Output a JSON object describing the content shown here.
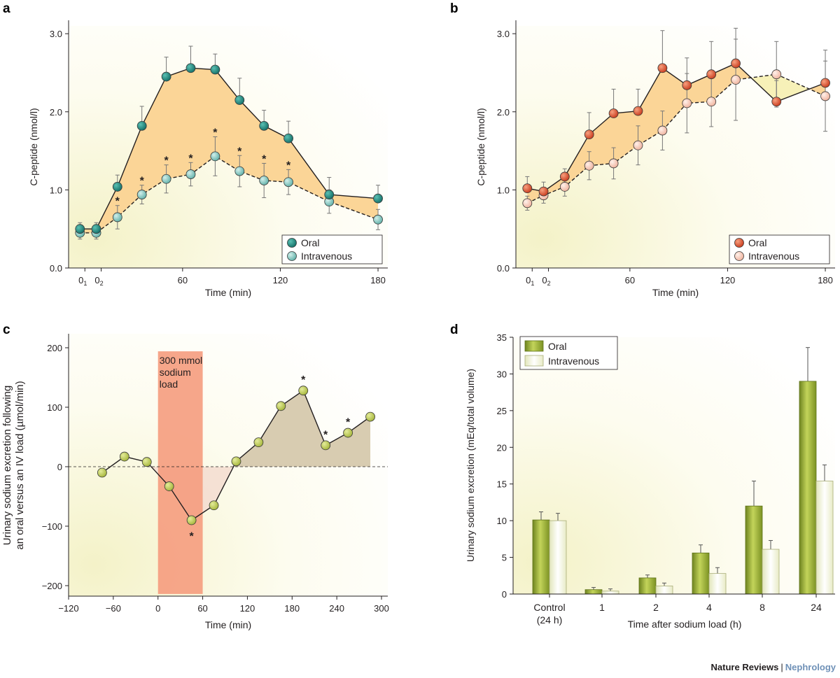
{
  "credit": {
    "publisher": "Nature Reviews",
    "separator": "|",
    "journal": "Nephrology"
  },
  "colors": {
    "oral_teal": "#1f8b80",
    "iv_teal": "#7fc7c0",
    "oral_red": "#e2542f",
    "iv_pink": "#f6c9b8",
    "fill_orange": "#fbd597",
    "fill_yellow": "#f7f1b8",
    "marker_green": "#c1cf55",
    "shade_brown": "#d8ccb1",
    "shade_pink": "#f3dcd0",
    "load_bar": "#f59c7e",
    "bar_oral": "#8fa52e",
    "bar_iv": "#f4f6df"
  },
  "chart_data": [
    {
      "panel": "a",
      "type": "line",
      "xlabel": "Time (min)",
      "ylabel": "C-peptide (nmol/l)",
      "xlim": [
        -10,
        186
      ],
      "ylim": [
        0,
        3.1
      ],
      "xticks": [
        {
          "v": 0,
          "t": "0",
          "sub": "1"
        },
        {
          "v": 10,
          "t": "0",
          "sub": "2"
        },
        {
          "v": 60,
          "t": "60"
        },
        {
          "v": 120,
          "t": "120"
        },
        {
          "v": 180,
          "t": "180"
        }
      ],
      "yticks": [
        {
          "v": 0,
          "t": "0.0"
        },
        {
          "v": 1,
          "t": "1.0"
        },
        {
          "v": 2,
          "t": "2.0"
        },
        {
          "v": 3,
          "t": "3.0"
        }
      ],
      "series": [
        {
          "name": "Oral",
          "style": "solid",
          "color": "#1f8b80",
          "x": [
            -3,
            7,
            20,
            35,
            50,
            65,
            80,
            95,
            110,
            125,
            150,
            180
          ],
          "y": [
            0.5,
            0.5,
            1.04,
            1.82,
            2.45,
            2.56,
            2.54,
            2.15,
            1.82,
            1.66,
            0.94,
            0.89
          ],
          "err": [
            0.08,
            0.08,
            0.15,
            0.25,
            0.25,
            0.28,
            0.2,
            0.28,
            0.2,
            0.22,
            0.22,
            0.17
          ]
        },
        {
          "name": "Intravenous",
          "style": "dashed",
          "color": "#7fc7c0",
          "x": [
            -3,
            7,
            20,
            35,
            50,
            65,
            80,
            95,
            110,
            125,
            150,
            180
          ],
          "y": [
            0.45,
            0.45,
            0.65,
            0.94,
            1.14,
            1.2,
            1.43,
            1.24,
            1.12,
            1.1,
            0.85,
            0.62
          ],
          "err": [
            0.08,
            0.08,
            0.15,
            0.12,
            0.18,
            0.15,
            0.25,
            0.2,
            0.22,
            0.16,
            0.15,
            0.13
          ]
        }
      ],
      "star_x": [
        20,
        35,
        50,
        65,
        80,
        95,
        110,
        125
      ],
      "star": "*",
      "legend": "bottom-right"
    },
    {
      "panel": "b",
      "type": "line",
      "xlabel": "Time (min)",
      "ylabel": "C-peptide (nmol/l)",
      "xlim": [
        -10,
        186
      ],
      "ylim": [
        0,
        3.1
      ],
      "xticks": [
        {
          "v": 0,
          "t": "0",
          "sub": "1"
        },
        {
          "v": 10,
          "t": "0",
          "sub": "2"
        },
        {
          "v": 60,
          "t": "60"
        },
        {
          "v": 120,
          "t": "120"
        },
        {
          "v": 180,
          "t": "180"
        }
      ],
      "yticks": [
        {
          "v": 0,
          "t": "0.0"
        },
        {
          "v": 1,
          "t": "1.0"
        },
        {
          "v": 2,
          "t": "2.0"
        },
        {
          "v": 3,
          "t": "3.0"
        }
      ],
      "series": [
        {
          "name": "Oral",
          "style": "solid",
          "color": "#e2542f",
          "x": [
            -3,
            7,
            20,
            35,
            50,
            65,
            80,
            95,
            110,
            125,
            150,
            180
          ],
          "y": [
            1.02,
            0.98,
            1.17,
            1.71,
            1.98,
            2.01,
            2.56,
            2.34,
            2.48,
            2.62,
            2.13,
            2.37
          ],
          "err": [
            0.15,
            0.12,
            0.1,
            0.28,
            0.31,
            0.28,
            0.48,
            0.35,
            0.42,
            0.45,
            0.27,
            0.42
          ]
        },
        {
          "name": "Intravenous",
          "style": "dashed",
          "color": "#f6c9b8",
          "x": [
            -3,
            7,
            20,
            35,
            50,
            65,
            80,
            95,
            110,
            125,
            150,
            180
          ],
          "y": [
            0.83,
            0.93,
            1.04,
            1.31,
            1.34,
            1.57,
            1.76,
            2.11,
            2.13,
            2.41,
            2.48,
            2.2
          ],
          "err": [
            0.09,
            0.1,
            0.12,
            0.18,
            0.2,
            0.25,
            0.25,
            0.38,
            0.32,
            0.52,
            0.42,
            0.45
          ]
        }
      ],
      "legend": "bottom-right"
    },
    {
      "panel": "c",
      "type": "line",
      "xlabel": "Time (min)",
      "ylabel": [
        "Urinary sodium excretion following",
        "an oral versus an IV load (µmol/min)"
      ],
      "xlim": [
        -120,
        310
      ],
      "ylim": [
        -210,
        210
      ],
      "xticks": [
        {
          "v": -120,
          "t": "−120"
        },
        {
          "v": -60,
          "t": "−60"
        },
        {
          "v": 0,
          "t": "0"
        },
        {
          "v": 60,
          "t": "60"
        },
        {
          "v": 120,
          "t": "120"
        },
        {
          "v": 180,
          "t": "180"
        },
        {
          "v": 240,
          "t": "240"
        },
        {
          "v": 300,
          "t": "300"
        }
      ],
      "yticks": [
        {
          "v": -200,
          "t": "−200"
        },
        {
          "v": -100,
          "t": "−100"
        },
        {
          "v": 0,
          "t": "0"
        },
        {
          "v": 100,
          "t": "100"
        },
        {
          "v": 200,
          "t": "200"
        }
      ],
      "series": [
        {
          "x": [
            -75,
            -45,
            -15,
            15,
            45,
            75,
            105,
            135,
            165,
            195,
            225,
            255,
            285
          ],
          "y": [
            -10,
            17,
            8,
            -33,
            -90,
            -65,
            9,
            41,
            102,
            128,
            36,
            57,
            84
          ]
        }
      ],
      "stars": [
        {
          "x": 45,
          "pos": "below"
        },
        {
          "x": 195,
          "pos": "above"
        },
        {
          "x": 225,
          "pos": "above"
        },
        {
          "x": 255,
          "pos": "above"
        }
      ],
      "star": "*",
      "load_window": [
        0,
        60
      ],
      "load_label": [
        "300 mmol",
        "sodium",
        "load"
      ]
    },
    {
      "panel": "d",
      "type": "bar",
      "xlabel": "Time after sodium load (h)",
      "ylabel": "Urinary sodium excretion (mEq/total volume)",
      "ylim": [
        0,
        35
      ],
      "yticks": [
        0,
        5,
        10,
        15,
        20,
        25,
        30,
        35
      ],
      "categories": [
        [
          "Control",
          "(24 h)"
        ],
        [
          "1"
        ],
        [
          "2"
        ],
        [
          "4"
        ],
        [
          "8"
        ],
        [
          "24"
        ]
      ],
      "series": [
        {
          "name": "Oral",
          "values": [
            10.1,
            0.6,
            2.2,
            5.6,
            12.0,
            29.0
          ],
          "err": [
            1.1,
            0.3,
            0.4,
            1.1,
            3.4,
            4.6
          ]
        },
        {
          "name": "Intravenous",
          "values": [
            10.0,
            0.4,
            1.1,
            2.8,
            6.1,
            15.4
          ],
          "err": [
            1.0,
            0.3,
            0.4,
            0.8,
            1.2,
            2.2
          ]
        }
      ],
      "legend": "top-left"
    }
  ]
}
